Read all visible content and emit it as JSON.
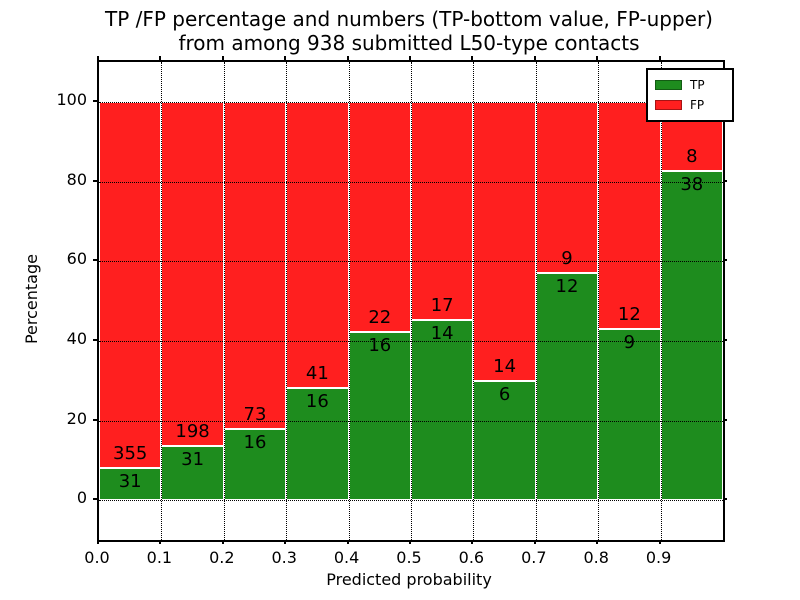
{
  "chart_data": {
    "type": "bar",
    "stacked": true,
    "normalized": "each bin scaled to 100%",
    "title_line1": "TP /FP percentage and numbers (TP-bottom value, FP-upper)",
    "title_line2": "from among 938 submitted L50-type contacts",
    "total_submitted": 938,
    "xlabel": "Predicted probability",
    "ylabel": "Percentage",
    "xlim": [
      0.0,
      1.0
    ],
    "ylim": [
      -10,
      110
    ],
    "bin_width": 0.1,
    "x_ticks": [
      0.0,
      0.1,
      0.2,
      0.3,
      0.4,
      0.5,
      0.6,
      0.7,
      0.8,
      0.9
    ],
    "x_tick_labels": [
      "0.0",
      "0.1",
      "0.2",
      "0.3",
      "0.4",
      "0.5",
      "0.6",
      "0.7",
      "0.8",
      "0.9"
    ],
    "y_ticks": [
      0,
      20,
      40,
      60,
      80,
      100
    ],
    "y_tick_labels": [
      "0",
      "20",
      "40",
      "60",
      "80",
      "100"
    ],
    "grid": {
      "visible": true,
      "linestyle": "dotted",
      "color": "#000000"
    },
    "bar_edge_color": "#ffffff",
    "series": [
      {
        "name": "TP",
        "color": "#1e8c1e",
        "counts": [
          31,
          31,
          16,
          16,
          16,
          14,
          6,
          12,
          9,
          38
        ]
      },
      {
        "name": "FP",
        "color": "#ff1f1f",
        "counts": [
          355,
          198,
          73,
          41,
          22,
          17,
          14,
          9,
          12,
          8
        ]
      }
    ],
    "tp_percent_heights": [
      8.0,
      13.5,
      18.0,
      28.1,
      42.1,
      45.2,
      30.0,
      57.1,
      42.9,
      82.6
    ],
    "legend": {
      "position": "upper-right",
      "entries": [
        {
          "label": "TP",
          "color": "#1e8c1e"
        },
        {
          "label": "FP",
          "color": "#ff1f1f"
        }
      ]
    }
  }
}
